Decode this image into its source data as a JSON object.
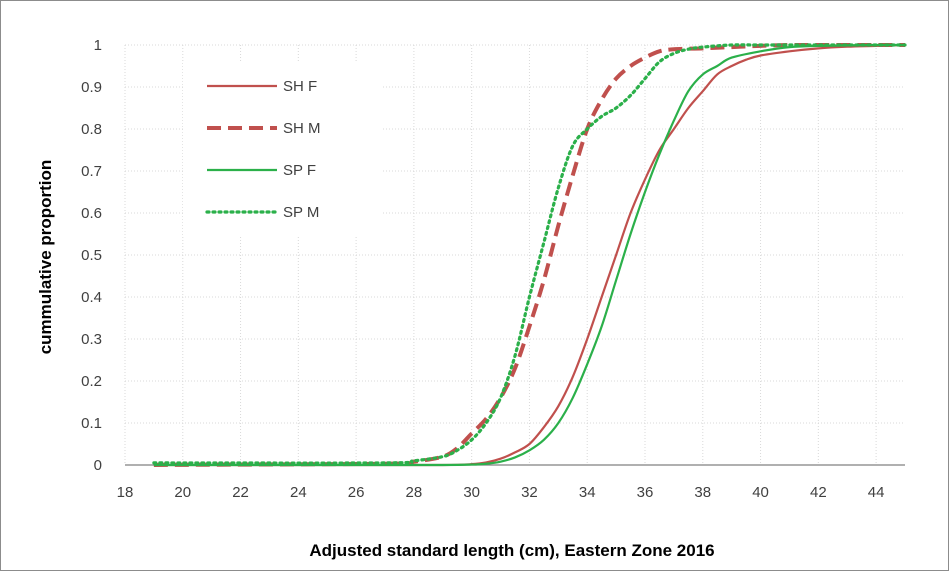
{
  "chart_data": {
    "type": "line",
    "title": "",
    "xlabel": "Adjusted standard length (cm), Eastern Zone 2016",
    "ylabel": "cummulative proportion",
    "xlim": [
      18,
      45
    ],
    "ylim": [
      0,
      1
    ],
    "x_ticks": [
      18,
      20,
      22,
      24,
      26,
      28,
      30,
      32,
      34,
      36,
      38,
      40,
      42,
      44
    ],
    "y_ticks": [
      0,
      0.1,
      0.2,
      0.3,
      0.4,
      0.5,
      0.6,
      0.7,
      0.8,
      0.9,
      1
    ],
    "grid": true,
    "legend_position": "top-left",
    "series": [
      {
        "name": "SH F",
        "color": "#c0504d",
        "dash": "solid",
        "x": [
          19,
          26,
          29,
          30,
          30.5,
          31,
          31.5,
          32,
          32.5,
          33,
          33.5,
          34,
          34.5,
          35,
          35.5,
          36,
          36.5,
          37,
          37.5,
          38,
          38.5,
          39,
          39.5,
          40,
          41,
          42,
          43,
          44,
          45
        ],
        "y": [
          0,
          0,
          0,
          0.002,
          0.006,
          0.015,
          0.03,
          0.05,
          0.09,
          0.14,
          0.21,
          0.3,
          0.4,
          0.5,
          0.6,
          0.68,
          0.75,
          0.8,
          0.85,
          0.89,
          0.93,
          0.95,
          0.965,
          0.975,
          0.985,
          0.992,
          0.996,
          0.998,
          1.0
        ]
      },
      {
        "name": "SH M",
        "color": "#c0504d",
        "dash": "dashed",
        "x": [
          19,
          27,
          28,
          29,
          29.5,
          30,
          30.5,
          31,
          31.5,
          32,
          32.5,
          33,
          33.5,
          34,
          34.5,
          35,
          35.5,
          36,
          36.5,
          37,
          38,
          39,
          40,
          41,
          42,
          44,
          45
        ],
        "y": [
          0,
          0.003,
          0.008,
          0.02,
          0.04,
          0.075,
          0.11,
          0.16,
          0.23,
          0.33,
          0.44,
          0.57,
          0.69,
          0.8,
          0.87,
          0.92,
          0.95,
          0.97,
          0.985,
          0.99,
          0.992,
          0.995,
          0.998,
          1.0,
          1.0,
          1.0,
          1.0
        ]
      },
      {
        "name": "SP F",
        "color": "#2bb04a",
        "dash": "solid",
        "x": [
          19,
          26,
          29,
          30,
          30.5,
          31,
          31.5,
          32,
          32.5,
          33,
          33.5,
          34,
          34.5,
          35,
          35.5,
          36,
          36.5,
          37,
          37.5,
          38,
          38.5,
          39,
          40,
          41,
          42,
          44,
          45
        ],
        "y": [
          0,
          0,
          0,
          0.001,
          0.003,
          0.008,
          0.018,
          0.035,
          0.06,
          0.1,
          0.16,
          0.24,
          0.33,
          0.44,
          0.55,
          0.65,
          0.74,
          0.82,
          0.89,
          0.93,
          0.95,
          0.97,
          0.985,
          0.995,
          0.998,
          1.0,
          1.0
        ]
      },
      {
        "name": "SP M",
        "color": "#2bb04a",
        "dash": "dotted",
        "x": [
          19,
          27,
          28,
          29,
          29.5,
          30,
          30.5,
          31,
          31.5,
          32,
          32.5,
          33,
          33.5,
          34,
          34.5,
          35,
          35.5,
          36,
          36.5,
          37,
          37.5,
          38,
          39,
          40,
          42,
          44,
          45
        ],
        "y": [
          0.005,
          0.005,
          0.01,
          0.02,
          0.035,
          0.06,
          0.1,
          0.16,
          0.26,
          0.4,
          0.53,
          0.66,
          0.76,
          0.8,
          0.83,
          0.85,
          0.88,
          0.92,
          0.96,
          0.98,
          0.99,
          0.995,
          1.0,
          1.0,
          1.0,
          1.0,
          1.0
        ]
      }
    ]
  }
}
